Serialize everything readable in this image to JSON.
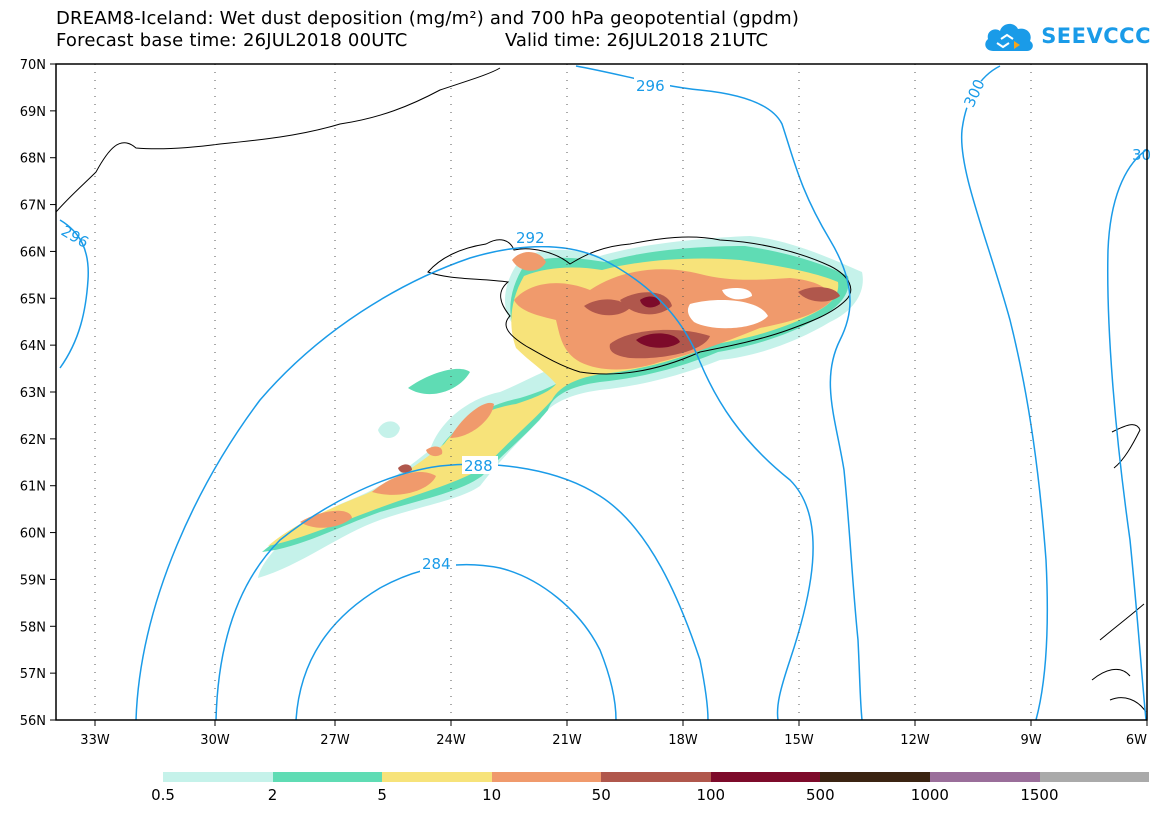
{
  "header": {
    "title_line1": "DREAM8-Iceland: Wet dust deposition (mg/m²) and 700 hPa geopotential (gpdm)",
    "forecast_base": "Forecast base time: 26JUL2018 00UTC",
    "valid_time": "Valid time: 26JUL2018 21UTC"
  },
  "logo": {
    "text": "SEEVCCC",
    "icon": "cloud-logo-icon",
    "color": "#1a9be8"
  },
  "map": {
    "lat_labels": [
      "70N",
      "69N",
      "68N",
      "67N",
      "66N",
      "65N",
      "64N",
      "63N",
      "62N",
      "61N",
      "60N",
      "59N",
      "58N",
      "57N",
      "56N"
    ],
    "lon_labels": [
      "33W",
      "30W",
      "27W",
      "24W",
      "21W",
      "18W",
      "15W",
      "12W",
      "9W",
      "6W"
    ],
    "contour_labels": [
      "296",
      "300",
      "30",
      "296",
      "292",
      "288",
      "284"
    ],
    "contour_color": "#1a9be8"
  },
  "legend": {
    "colors": [
      "#c5f2ea",
      "#5fdcb4",
      "#f7e37a",
      "#f09a6c",
      "#b0574c",
      "#7d0a2a",
      "#3b2412",
      "#9a6e9a",
      "#aaaaaa"
    ],
    "labels": [
      "0.5",
      "2",
      "5",
      "10",
      "50",
      "100",
      "500",
      "1000",
      "1500"
    ]
  }
}
